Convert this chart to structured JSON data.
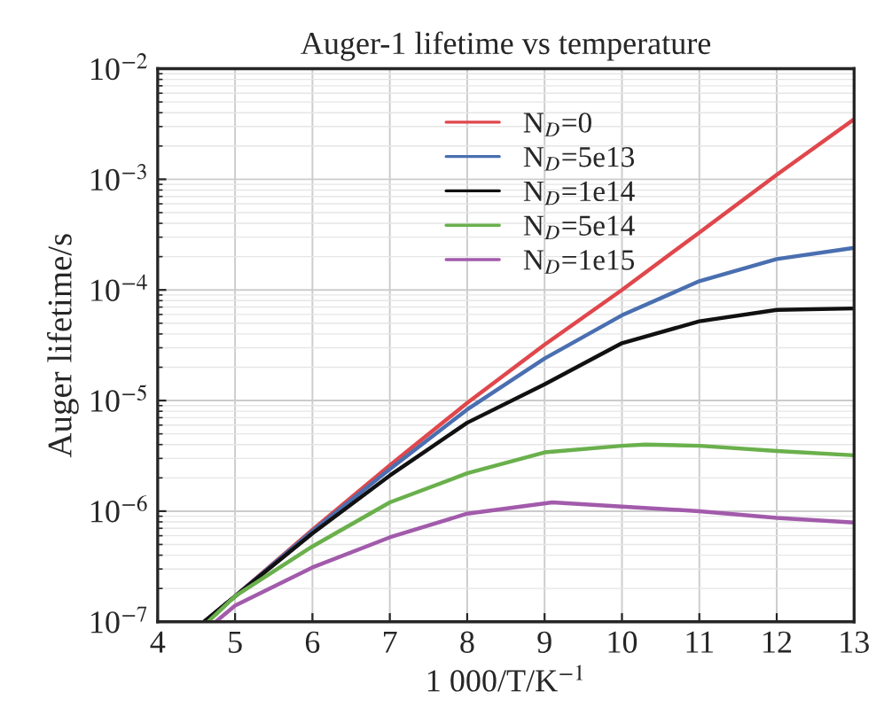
{
  "chart_data": {
    "type": "line",
    "title": "Auger-1 lifetime vs temperature",
    "xlabel": "1 000/T/K$^{−1}$",
    "ylabel": "Auger lifetime/s",
    "log": "y",
    "grid": true,
    "legend": "top center",
    "line_style": "solid",
    "marker": "none",
    "xlim": [
      4,
      13
    ],
    "xticks": [
      4,
      5,
      6,
      7,
      8,
      9,
      10,
      11,
      12,
      13
    ],
    "ylim": [
      1e-07,
      0.01
    ],
    "yticks": [
      {
        "value": 1e-07,
        "label": "10$^{−7}$"
      },
      {
        "value": 1e-06,
        "label": "10$^{−6}$"
      },
      {
        "value": 1e-05,
        "label": "10$^{−5}$"
      },
      {
        "value": 0.0001,
        "label": "10$^{−4}$"
      },
      {
        "value": 0.001,
        "label": "10$^{−3}$"
      },
      {
        "value": 0.01,
        "label": "10$^{−2}$"
      }
    ],
    "series": [
      {
        "name": "N$_{D}$=0",
        "color": "#e0474c",
        "x": [
          4.6,
          5,
          6,
          7,
          8,
          9,
          10,
          11,
          12,
          13
        ],
        "values": [
          1e-07,
          1.7e-07,
          6.8e-07,
          2.6e-06,
          9.5e-06,
          3.2e-05,
          0.0001,
          0.00033,
          0.0011,
          0.0035
        ]
      },
      {
        "name": "N$_{D}$=5e13",
        "color": "#4a6fb0",
        "x": [
          4.6,
          5,
          6,
          7,
          8,
          9,
          10,
          11,
          12,
          13
        ],
        "values": [
          1e-07,
          1.7e-07,
          6.6e-07,
          2.4e-06,
          8.3e-06,
          2.4e-05,
          5.9e-05,
          0.00012,
          0.00019,
          0.00024
        ]
      },
      {
        "name": "N$_{D}$=1e14",
        "color": "#111111",
        "x": [
          4.6,
          5,
          6,
          7,
          8,
          9,
          10,
          11,
          12,
          13
        ],
        "values": [
          1e-07,
          1.7e-07,
          6.3e-07,
          2.1e-06,
          6.3e-06,
          1.4e-05,
          3.3e-05,
          5.2e-05,
          6.6e-05,
          6.8e-05
        ]
      },
      {
        "name": "N$_{D}$=5e14",
        "color": "#6ab04c",
        "x": [
          4.65,
          5,
          6,
          7,
          8,
          9,
          10,
          10.3,
          11,
          12,
          13
        ],
        "values": [
          1e-07,
          1.7e-07,
          4.8e-07,
          1.2e-06,
          2.2e-06,
          3.4e-06,
          3.9e-06,
          4e-06,
          3.9e-06,
          3.5e-06,
          3.2e-06
        ]
      },
      {
        "name": "N$_{D}$=1e15",
        "color": "#a25bab",
        "x": [
          4.75,
          5,
          6,
          7,
          8,
          9.1,
          10,
          11,
          12,
          13
        ],
        "values": [
          1e-07,
          1.4e-07,
          3.1e-07,
          5.8e-07,
          9.5e-07,
          1.2e-06,
          1.1e-06,
          1e-06,
          8.7e-07,
          7.9e-07
        ]
      }
    ]
  }
}
